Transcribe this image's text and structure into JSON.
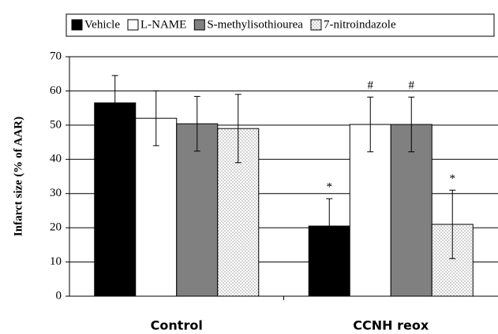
{
  "chart_data": {
    "type": "bar",
    "ylabel": "Infarct size (% of AAR)",
    "categories": [
      "Control",
      "CCNH reox"
    ],
    "series": [
      {
        "name": "Vehicle",
        "color": "#000000",
        "values": [
          56.5,
          20.5
        ],
        "errors": [
          8,
          8
        ],
        "annotations": [
          null,
          "*"
        ]
      },
      {
        "name": "L-NAME",
        "color": "#ffffff",
        "values": [
          52,
          50.2
        ],
        "errors": [
          8,
          8
        ],
        "annotations": [
          null,
          "#"
        ]
      },
      {
        "name": "S-methylisothiourea",
        "color": "#808080",
        "values": [
          50.4,
          50.2
        ],
        "errors": [
          8,
          8
        ],
        "annotations": [
          null,
          "#"
        ]
      },
      {
        "name": "7-nitroindazole",
        "color": "#ffffff",
        "pattern": "dots",
        "values": [
          49,
          21
        ],
        "errors": [
          10,
          10
        ],
        "annotations": [
          null,
          "*"
        ]
      }
    ],
    "ylim": [
      0,
      70
    ],
    "yticks": [
      0,
      10,
      20,
      30,
      40,
      50,
      60,
      70
    ],
    "grid": true,
    "legend": "top"
  }
}
